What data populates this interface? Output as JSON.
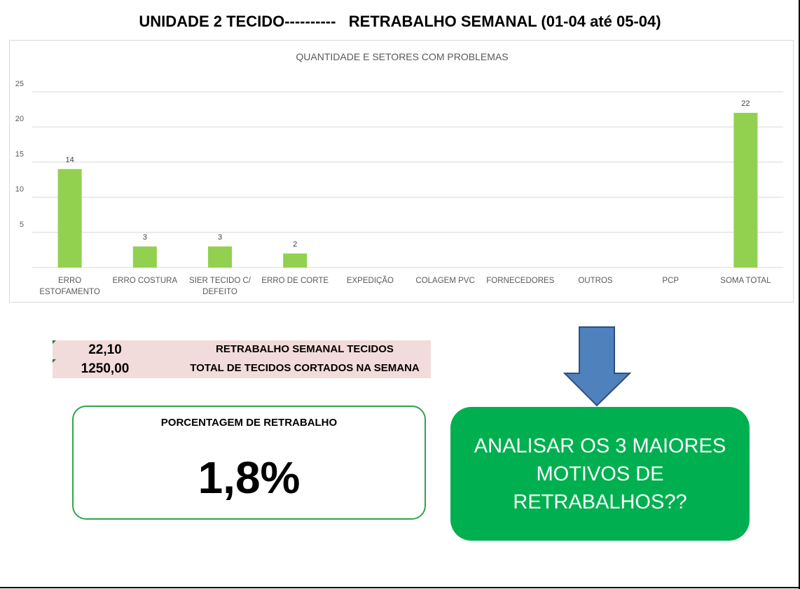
{
  "page": {
    "title": "UNIDADE 2 TECIDO----------   RETRABALHO SEMANAL (01-04 até 05-04)"
  },
  "chart_data": {
    "type": "bar",
    "title": "QUANTIDADE E SETORES COM PROBLEMAS",
    "categories": [
      [
        "ERRO",
        "ESTOFAMENTO"
      ],
      [
        "ERRO COSTURA"
      ],
      [
        "SIER TECIDO C/",
        "DEFEITO"
      ],
      [
        "ERRO DE CORTE"
      ],
      [
        "EXPEDIÇÃO"
      ],
      [
        "COLAGEM PVC"
      ],
      [
        "FORNECEDORES"
      ],
      [
        "OUTROS"
      ],
      [
        "PCP"
      ],
      [
        "SOMA TOTAL"
      ]
    ],
    "values": [
      14,
      3,
      3,
      2,
      null,
      null,
      null,
      null,
      null,
      22
    ],
    "data_labels": [
      "14",
      "3",
      "3",
      "2",
      "",
      "",
      "",
      "",
      "",
      "22"
    ],
    "ylim": [
      0,
      25
    ],
    "yticks": [
      "5",
      "10",
      "15",
      "20",
      "25"
    ],
    "ytick_values": [
      5,
      10,
      15,
      20,
      25
    ],
    "grid": true,
    "legend": "none",
    "bar_color": "#92d050",
    "grid_color": "#d9d9d9",
    "text_color": "#595959"
  },
  "summary": {
    "rows": [
      {
        "value": "22,10",
        "label": "RETRABALHO SEMANAL TECIDOS"
      },
      {
        "value": "1250,00",
        "label": "TOTAL DE TECIDOS CORTADOS NA SEMANA"
      }
    ],
    "background_color": "#f2dcdb"
  },
  "percentage_card": {
    "label": "PORCENTAGEM DE RETRABALHO",
    "value": "1,8%",
    "border_color": "#2ea44f"
  },
  "arrow": {
    "icon": "arrow-down-icon",
    "color": "#4f81bd"
  },
  "action_card": {
    "text": "ANALISAR OS 3 MAIORES MOTIVOS DE RETRABALHOS??",
    "color": "#00b050"
  }
}
